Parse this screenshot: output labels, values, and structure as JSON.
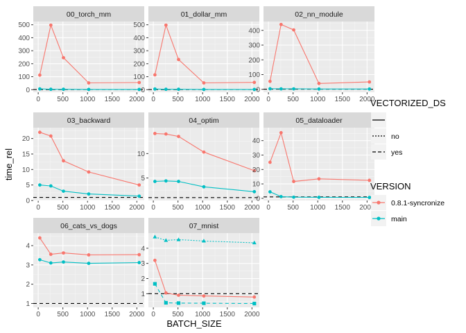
{
  "chart_data": {
    "type": "line",
    "xlabel": "BATCH_SIZE",
    "ylabel": "time_rel",
    "x_ticks": [
      0,
      500,
      1000,
      1500,
      2000
    ],
    "x_range": [
      -100,
      2150
    ],
    "legend": {
      "vectorized_title": "VECTORIZED_DS",
      "vectorized_entries": [
        "no",
        "yes"
      ],
      "version_title": "VERSION",
      "version_entries": [
        {
          "label": "0.8.1-syncronize",
          "color": "#F8766D"
        },
        {
          "label": "main",
          "color": "#00BFC4"
        }
      ],
      "placement": "right"
    },
    "reference_line": {
      "y": 1,
      "style": "dashed",
      "color": "#000000"
    },
    "panels": [
      {
        "title": "00_torch_mm",
        "y_range": [
          -20,
          525
        ],
        "y_ticks": [
          0,
          100,
          200,
          300,
          400,
          500
        ],
        "series": [
          {
            "version": "0.8.1-syncronize",
            "vectorized": "yes",
            "x": [
              32,
              256,
              512,
              1024,
              2048
            ],
            "y": [
              112,
              497,
              246,
              52,
              55
            ]
          },
          {
            "version": "main",
            "vectorized": "yes",
            "x": [
              32,
              256,
              512,
              1024,
              2048
            ],
            "y": [
              6,
              3,
              3,
              2,
              2
            ]
          }
        ]
      },
      {
        "title": "01_dollar_mm",
        "y_range": [
          -20,
          525
        ],
        "y_ticks": [
          0,
          100,
          200,
          300,
          400,
          500
        ],
        "series": [
          {
            "version": "0.8.1-syncronize",
            "vectorized": "yes",
            "x": [
              32,
              256,
              512,
              1024,
              2048
            ],
            "y": [
              114,
              497,
              232,
              52,
              56
            ]
          },
          {
            "version": "main",
            "vectorized": "yes",
            "x": [
              32,
              256,
              512,
              1024,
              2048
            ],
            "y": [
              5,
              3,
              3,
              2,
              2
            ]
          }
        ]
      },
      {
        "title": "02_nn_module",
        "y_range": [
          -20,
          460
        ],
        "y_ticks": [
          0,
          100,
          200,
          300,
          400
        ],
        "series": [
          {
            "version": "0.8.1-syncronize",
            "vectorized": "yes",
            "x": [
              32,
              256,
              512,
              1024,
              2048
            ],
            "y": [
              54,
              440,
              403,
              40,
              50
            ]
          },
          {
            "version": "main",
            "vectorized": "yes",
            "x": [
              32,
              256,
              512,
              1024,
              2048
            ],
            "y": [
              4,
              3,
              3,
              2,
              2
            ]
          }
        ]
      },
      {
        "title": "03_backward",
        "y_range": [
          0,
          23.5
        ],
        "y_ticks": [
          0,
          5,
          10,
          15,
          20
        ],
        "series": [
          {
            "version": "0.8.1-syncronize",
            "vectorized": "yes",
            "x": [
              32,
              256,
              512,
              1024,
              2048
            ],
            "y": [
              22,
              20.8,
              12.8,
              9.2,
              5
            ]
          },
          {
            "version": "main",
            "vectorized": "yes",
            "x": [
              32,
              256,
              512,
              1024,
              2048
            ],
            "y": [
              5,
              4.7,
              3,
              2.1,
              1.4
            ]
          }
        ]
      },
      {
        "title": "04_optim",
        "y_range": [
          0.4,
          15.3
        ],
        "y_ticks": [
          5,
          10
        ],
        "series": [
          {
            "version": "0.8.1-syncronize",
            "vectorized": "yes",
            "x": [
              32,
              256,
              512,
              1024,
              2048
            ],
            "y": [
              14.1,
              14,
              13.5,
              10.3,
              6.5
            ]
          },
          {
            "version": "main",
            "vectorized": "yes",
            "x": [
              32,
              256,
              512,
              1024,
              2048
            ],
            "y": [
              4.3,
              4.4,
              4.3,
              3.2,
              2.2
            ]
          }
        ]
      },
      {
        "title": "05_dataloader",
        "y_range": [
          -1.5,
          49
        ],
        "y_ticks": [
          0,
          10,
          20,
          30,
          40
        ],
        "series": [
          {
            "version": "0.8.1-syncronize",
            "vectorized": "yes",
            "x": [
              32,
              256,
              512,
              1024,
              2048
            ],
            "y": [
              25,
              45.5,
              11.7,
              13.5,
              12.5
            ]
          },
          {
            "version": "main",
            "vectorized": "yes",
            "x": [
              32,
              256,
              512,
              1024,
              2048
            ],
            "y": [
              4.5,
              1.2,
              0.8,
              0.7,
              0.6
            ]
          }
        ]
      },
      {
        "title": "06_cats_vs_dogs",
        "y_range": [
          0.8,
          4.65
        ],
        "y_ticks": [
          1,
          2,
          3,
          4
        ],
        "series": [
          {
            "version": "0.8.1-syncronize",
            "vectorized": "yes",
            "x": [
              32,
              256,
              512,
              1024,
              2048
            ],
            "y": [
              4.4,
              3.55,
              3.62,
              3.52,
              3.53
            ]
          },
          {
            "version": "main",
            "vectorized": "yes",
            "x": [
              32,
              256,
              512,
              1024,
              2048
            ],
            "y": [
              3.27,
              3.1,
              3.15,
              3.08,
              3.12
            ]
          }
        ]
      },
      {
        "title": "07_mnist",
        "y_range": [
          0.1,
          5.0
        ],
        "y_ticks": [
          1,
          2,
          3,
          4
        ],
        "series": [
          {
            "version": "0.8.1-syncronize",
            "vectorized": "yes",
            "x": [
              32,
              256,
              512,
              1024,
              2048
            ],
            "y": [
              3.2,
              1.05,
              0.9,
              0.85,
              0.78
            ]
          },
          {
            "version": "main",
            "vectorized": "yes",
            "x": [
              32,
              256,
              512,
              1024,
              2048
            ],
            "y": [
              1.65,
              0.4,
              0.38,
              0.37,
              0.35
            ]
          },
          {
            "version": "main",
            "vectorized": "no",
            "x": [
              32,
              256,
              512,
              1024,
              2048
            ],
            "y": [
              4.75,
              4.52,
              4.57,
              4.48,
              4.36
            ]
          }
        ]
      }
    ]
  }
}
